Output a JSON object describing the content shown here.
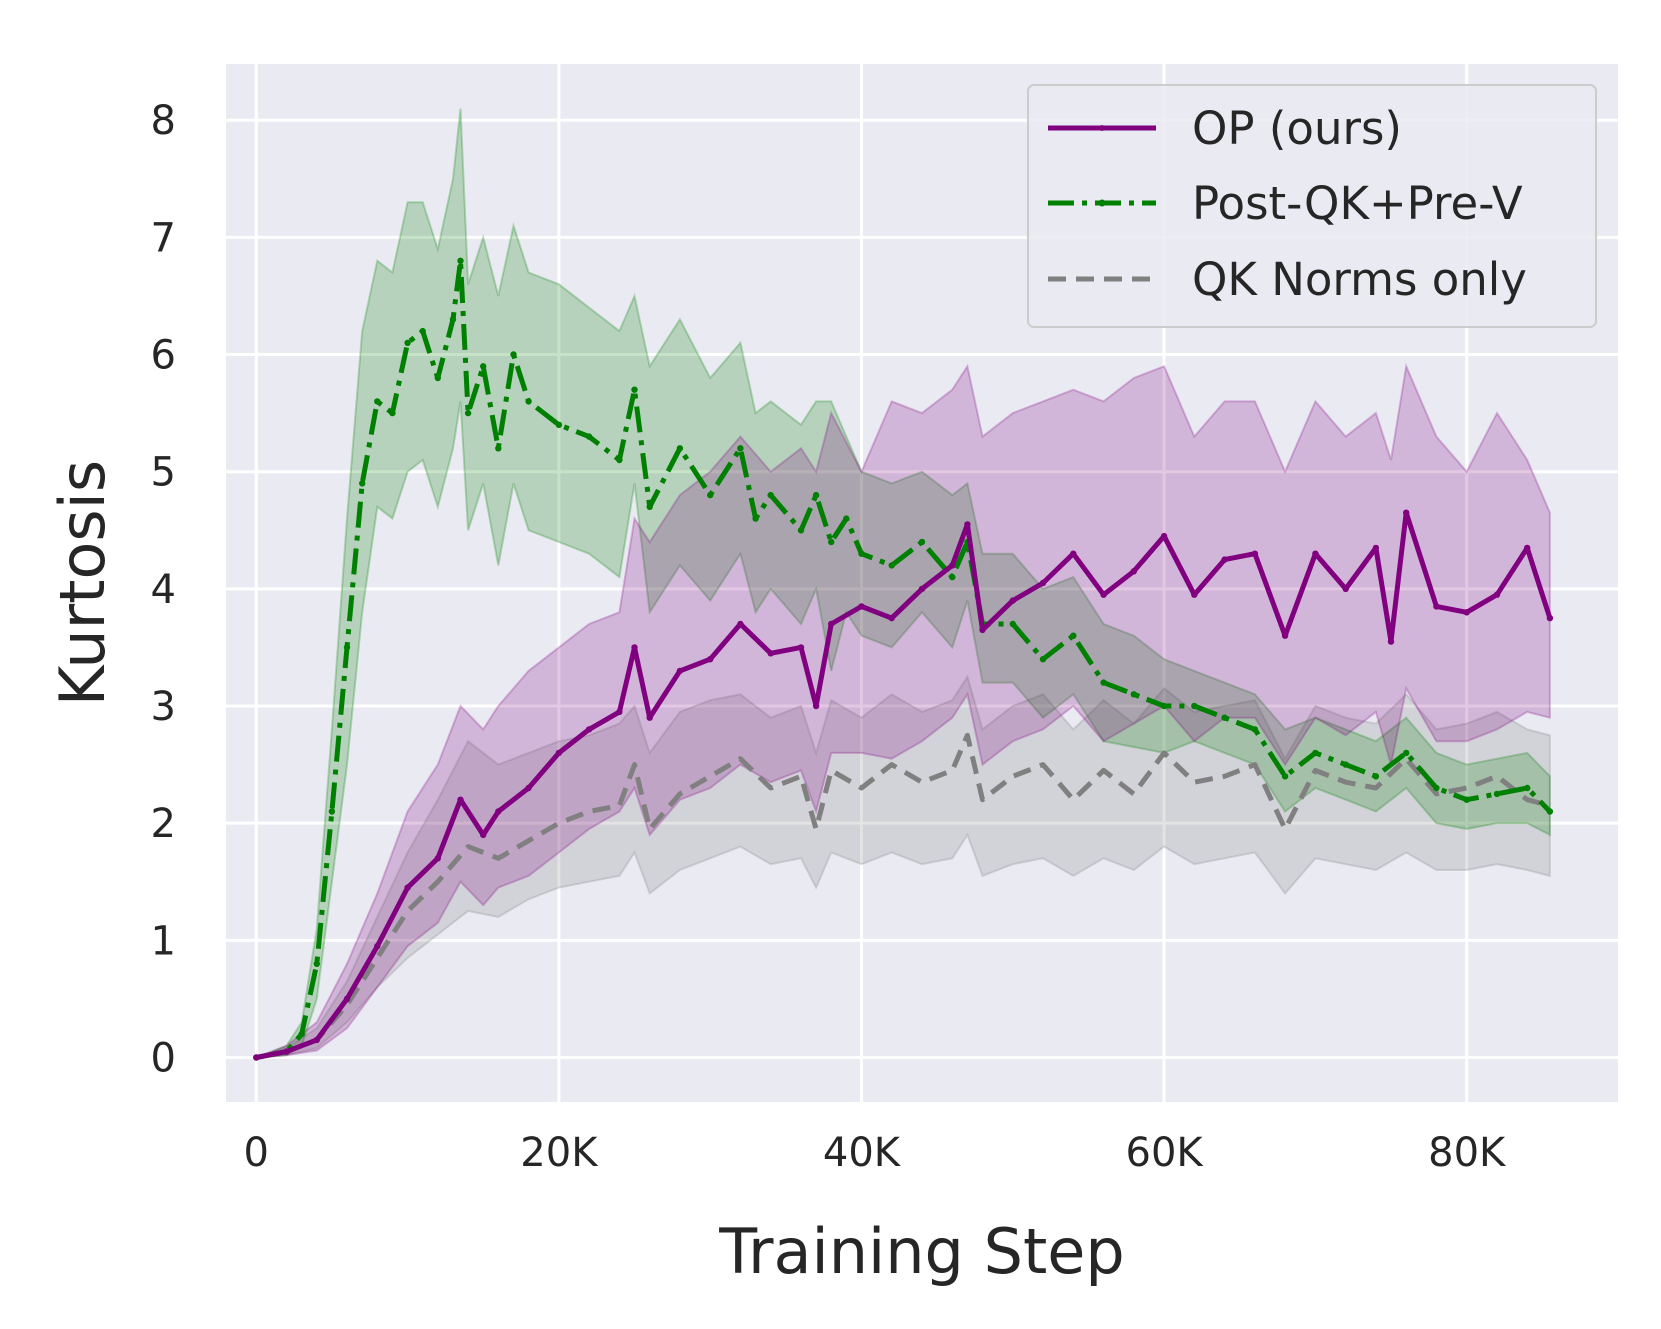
{
  "chart_data": {
    "type": "line",
    "title": "",
    "xlabel": "Training Step",
    "ylabel": "Kurtosis",
    "xlim": [
      -2000,
      90000
    ],
    "ylim": [
      -0.38,
      8.48
    ],
    "grid": true,
    "legend_position": "top-right",
    "x_ticks": [
      0,
      20000,
      40000,
      60000,
      80000
    ],
    "x_tick_labels": [
      "0",
      "20K",
      "40K",
      "60K",
      "80K"
    ],
    "y_ticks": [
      0,
      1,
      2,
      3,
      4,
      5,
      6,
      7,
      8
    ],
    "y_tick_labels": [
      "0",
      "1",
      "2",
      "3",
      "4",
      "5",
      "6",
      "7",
      "8"
    ],
    "series": [
      {
        "name": "OP (ours)",
        "color": "#800080",
        "linestyle": "solid",
        "x": [
          0,
          2000,
          4000,
          6000,
          8000,
          10000,
          12000,
          13500,
          15000,
          16000,
          18000,
          20000,
          22000,
          24000,
          25000,
          26000,
          28000,
          30000,
          32000,
          34000,
          36000,
          37000,
          38000,
          40000,
          42000,
          44000,
          46000,
          47000,
          48000,
          50000,
          52000,
          54000,
          56000,
          58000,
          60000,
          62000,
          64000,
          66000,
          68000,
          70000,
          72000,
          74000,
          75000,
          76000,
          78000,
          80000,
          82000,
          84000,
          85500
        ],
        "values": [
          0,
          0.05,
          0.15,
          0.5,
          0.95,
          1.45,
          1.7,
          2.2,
          1.9,
          2.1,
          2.3,
          2.6,
          2.8,
          2.95,
          3.5,
          2.9,
          3.3,
          3.4,
          3.7,
          3.45,
          3.5,
          3.0,
          3.7,
          3.85,
          3.75,
          4.0,
          4.2,
          4.55,
          3.65,
          3.9,
          4.05,
          4.3,
          3.95,
          4.15,
          4.45,
          3.95,
          4.25,
          4.3,
          3.6,
          4.3,
          4.0,
          4.35,
          3.55,
          4.65,
          3.85,
          3.8,
          3.95,
          4.35,
          3.75
        ],
        "band_upper": [
          0,
          0.1,
          0.3,
          0.8,
          1.4,
          2.1,
          2.5,
          3.0,
          2.8,
          3.0,
          3.3,
          3.5,
          3.7,
          3.8,
          4.6,
          4.4,
          4.8,
          5.0,
          5.3,
          5.0,
          5.2,
          5.0,
          5.5,
          5.0,
          5.6,
          5.5,
          5.7,
          5.9,
          5.3,
          5.5,
          5.6,
          5.7,
          5.6,
          5.8,
          5.9,
          5.3,
          5.6,
          5.6,
          5.0,
          5.6,
          5.3,
          5.5,
          5.1,
          5.9,
          5.3,
          5.0,
          5.5,
          5.1,
          4.65
        ],
        "band_lower": [
          0,
          0.02,
          0.06,
          0.25,
          0.6,
          0.95,
          1.15,
          1.5,
          1.3,
          1.45,
          1.55,
          1.75,
          1.95,
          2.1,
          2.3,
          1.9,
          2.2,
          2.3,
          2.5,
          2.35,
          2.45,
          2.1,
          2.6,
          2.6,
          2.55,
          2.7,
          2.9,
          3.1,
          2.5,
          2.7,
          2.8,
          3.0,
          2.7,
          2.85,
          3.0,
          2.7,
          2.9,
          2.9,
          2.5,
          2.9,
          2.75,
          2.95,
          2.5,
          3.15,
          2.7,
          2.7,
          2.8,
          2.95,
          2.9
        ]
      },
      {
        "name": "Post-QK+Pre-V",
        "color": "#008000",
        "linestyle": "dashdot",
        "x": [
          0,
          2000,
          3000,
          4000,
          5000,
          6000,
          7000,
          8000,
          9000,
          10000,
          11000,
          12000,
          13000,
          13500,
          14000,
          15000,
          16000,
          17000,
          18000,
          20000,
          22000,
          24000,
          25000,
          26000,
          28000,
          30000,
          32000,
          33000,
          34000,
          36000,
          37000,
          38000,
          39000,
          40000,
          42000,
          44000,
          46000,
          47000,
          48000,
          50000,
          52000,
          54000,
          56000,
          58000,
          60000,
          62000,
          64000,
          66000,
          68000,
          70000,
          72000,
          74000,
          76000,
          78000,
          80000,
          82000,
          84000,
          85500
        ],
        "values": [
          0,
          0.05,
          0.2,
          0.8,
          2.1,
          3.5,
          4.9,
          5.6,
          5.5,
          6.1,
          6.2,
          5.8,
          6.3,
          6.8,
          5.5,
          5.9,
          5.2,
          6.0,
          5.6,
          5.4,
          5.3,
          5.1,
          5.7,
          4.7,
          5.2,
          4.8,
          5.2,
          4.6,
          4.8,
          4.5,
          4.8,
          4.4,
          4.6,
          4.3,
          4.2,
          4.4,
          4.1,
          4.4,
          3.7,
          3.7,
          3.4,
          3.6,
          3.2,
          3.1,
          3.0,
          3.0,
          2.9,
          2.8,
          2.4,
          2.6,
          2.5,
          2.4,
          2.6,
          2.3,
          2.2,
          2.25,
          2.3,
          2.1
        ],
        "band_upper": [
          0,
          0.1,
          0.3,
          1.1,
          2.8,
          4.6,
          6.2,
          6.8,
          6.7,
          7.3,
          7.3,
          6.9,
          7.5,
          8.1,
          6.6,
          7.0,
          6.5,
          7.1,
          6.7,
          6.6,
          6.4,
          6.2,
          6.5,
          5.9,
          6.3,
          5.8,
          6.1,
          5.5,
          5.6,
          5.4,
          5.6,
          5.6,
          5.3,
          5.0,
          4.9,
          5.0,
          4.8,
          4.9,
          4.3,
          4.3,
          4.0,
          4.1,
          3.7,
          3.6,
          3.4,
          3.3,
          3.2,
          3.1,
          2.8,
          2.9,
          2.8,
          2.7,
          2.9,
          2.6,
          2.5,
          2.55,
          2.6,
          2.4
        ],
        "band_lower": [
          0,
          0.02,
          0.1,
          0.5,
          1.5,
          2.5,
          3.8,
          4.7,
          4.6,
          5.0,
          5.1,
          4.7,
          5.2,
          5.6,
          4.5,
          4.9,
          4.2,
          4.9,
          4.5,
          4.4,
          4.3,
          4.1,
          4.9,
          3.8,
          4.2,
          3.9,
          4.3,
          3.8,
          4.0,
          3.7,
          4.0,
          3.3,
          3.8,
          3.6,
          3.5,
          3.8,
          3.5,
          3.9,
          3.2,
          3.2,
          2.9,
          3.1,
          2.7,
          2.65,
          2.6,
          2.7,
          2.6,
          2.5,
          2.1,
          2.3,
          2.2,
          2.1,
          2.3,
          2.0,
          1.95,
          2.0,
          2.0,
          1.9
        ]
      },
      {
        "name": "QK Norms only",
        "color": "#808080",
        "linestyle": "dashed",
        "x": [
          0,
          2000,
          4000,
          6000,
          8000,
          10000,
          12000,
          14000,
          16000,
          18000,
          20000,
          22000,
          24000,
          25000,
          26000,
          28000,
          30000,
          32000,
          34000,
          36000,
          37000,
          38000,
          40000,
          42000,
          44000,
          46000,
          47000,
          48000,
          50000,
          52000,
          54000,
          56000,
          58000,
          60000,
          62000,
          64000,
          66000,
          68000,
          70000,
          72000,
          74000,
          76000,
          78000,
          80000,
          82000,
          84000,
          85500
        ],
        "values": [
          0,
          0.05,
          0.15,
          0.45,
          0.85,
          1.25,
          1.5,
          1.8,
          1.7,
          1.85,
          2.0,
          2.1,
          2.15,
          2.5,
          1.95,
          2.25,
          2.4,
          2.55,
          2.3,
          2.4,
          1.95,
          2.45,
          2.3,
          2.5,
          2.35,
          2.45,
          2.75,
          2.2,
          2.4,
          2.5,
          2.2,
          2.45,
          2.25,
          2.6,
          2.35,
          2.4,
          2.5,
          1.95,
          2.45,
          2.35,
          2.3,
          2.55,
          2.25,
          2.3,
          2.4,
          2.2,
          2.15
        ],
        "band_upper": [
          0,
          0.08,
          0.25,
          0.65,
          1.2,
          1.75,
          2.2,
          2.7,
          2.5,
          2.6,
          2.7,
          2.75,
          2.85,
          3.0,
          2.6,
          2.95,
          3.05,
          3.1,
          2.9,
          3.0,
          2.6,
          3.05,
          2.9,
          3.1,
          2.95,
          3.05,
          3.25,
          2.8,
          3.0,
          3.1,
          2.8,
          3.05,
          2.85,
          3.15,
          2.95,
          3.0,
          3.05,
          2.55,
          3.0,
          2.9,
          2.85,
          3.1,
          2.8,
          2.85,
          2.95,
          2.8,
          2.75
        ],
        "band_lower": [
          0,
          0.02,
          0.08,
          0.3,
          0.6,
          0.85,
          1.05,
          1.25,
          1.2,
          1.35,
          1.45,
          1.5,
          1.55,
          1.75,
          1.4,
          1.6,
          1.7,
          1.8,
          1.65,
          1.7,
          1.45,
          1.75,
          1.65,
          1.75,
          1.65,
          1.7,
          1.9,
          1.55,
          1.65,
          1.7,
          1.55,
          1.7,
          1.6,
          1.8,
          1.65,
          1.7,
          1.75,
          1.4,
          1.7,
          1.65,
          1.6,
          1.75,
          1.6,
          1.6,
          1.65,
          1.6,
          1.55
        ]
      }
    ]
  }
}
